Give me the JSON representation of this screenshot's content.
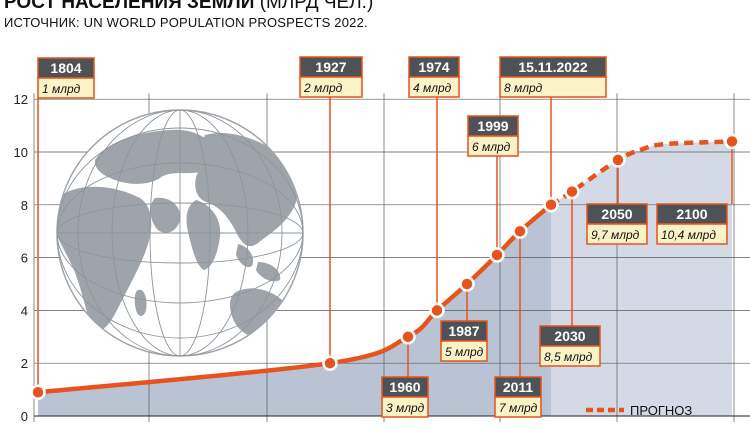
{
  "header": {
    "title": "РОСТ НАСЕЛЕНИЯ ЗЕМЛИ",
    "title_unit": "(МЛРД ЧЕЛ.)",
    "source": "ИСТОЧНИК: UN WORLD POPULATION PROSPECTS 2022."
  },
  "chart_data": {
    "type": "area",
    "y_ticks": [
      "0",
      "2",
      "4",
      "6",
      "8",
      "10",
      "12"
    ],
    "ylim": [
      0,
      12
    ],
    "xlim": [
      1800,
      2100
    ],
    "grid": true,
    "series": [
      {
        "name": "",
        "style": "solid",
        "points": [
          [
            1804,
            0.9
          ],
          [
            1927,
            2
          ],
          [
            1960,
            3
          ],
          [
            1974,
            4
          ],
          [
            1987,
            5
          ],
          [
            1999,
            6.1
          ],
          [
            2011,
            7
          ],
          [
            2022,
            8
          ]
        ]
      },
      {
        "name": "ПРОГНОЗ",
        "style": "dashed",
        "points": [
          [
            2022,
            8
          ],
          [
            2030,
            8.5
          ],
          [
            2050,
            9.7
          ],
          [
            2060,
            10.1
          ],
          [
            2070,
            10.3
          ],
          [
            2100,
            10.4
          ]
        ]
      }
    ],
    "milestones": [
      {
        "year": 1804,
        "value": 0.9,
        "label": "1804",
        "sublabel": "1 млрд",
        "side": "above"
      },
      {
        "year": 1927,
        "value": 2,
        "label": "1927",
        "sublabel": "2 млрд",
        "side": "above"
      },
      {
        "year": 1960,
        "value": 3,
        "label": "1960",
        "sublabel": "3 млрд",
        "side": "below"
      },
      {
        "year": 1974,
        "value": 4,
        "label": "1974",
        "sublabel": "4 млрд",
        "side": "above"
      },
      {
        "year": 1987,
        "value": 5,
        "label": "1987",
        "sublabel": "5 млрд",
        "side": "below"
      },
      {
        "year": 1999,
        "value": 6.1,
        "label": "1999",
        "sublabel": "6 млрд",
        "side": "above"
      },
      {
        "year": 2011,
        "value": 7,
        "label": "2011",
        "sublabel": "7 млрд",
        "side": "below"
      },
      {
        "year": 2022,
        "value": 8,
        "label": "15.11.2022",
        "sublabel": "8 млрд",
        "side": "above"
      },
      {
        "year": 2030,
        "value": 8.5,
        "label": "2030",
        "sublabel": "8,5 млрд",
        "side": "below"
      },
      {
        "year": 2050,
        "value": 9.7,
        "label": "2050",
        "sublabel": "9,7 млрд",
        "side": "below"
      },
      {
        "year": 2100,
        "value": 10.4,
        "label": "2100",
        "sublabel": "10,4 млрд",
        "side": "below"
      }
    ],
    "legend": {
      "label": "ПРОГНОЗ",
      "position": "bottom-right"
    },
    "colors": {
      "line": "#e8521c",
      "area": "#b9c3d3",
      "forecast_area": "#d3dae5",
      "label_head": "#4d5256",
      "label_body": "#fbf3c8",
      "globe": "#9ea4aa"
    }
  }
}
